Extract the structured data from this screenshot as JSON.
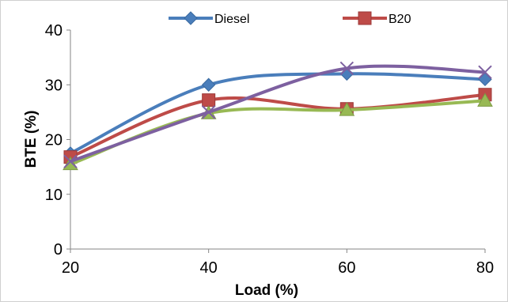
{
  "chart_data": {
    "type": "line",
    "xlabel": "Load (%)",
    "ylabel": "BTE (%)",
    "x": [
      20,
      40,
      60,
      80
    ],
    "xlim": [
      20,
      80
    ],
    "ylim": [
      0,
      40
    ],
    "yticks": [
      0,
      10,
      20,
      30,
      40
    ],
    "grid": false,
    "legend_placement": "top",
    "series": [
      {
        "name": "Diesel",
        "values": [
          17.5,
          30.0,
          32.0,
          31.0
        ],
        "color": "#4a7ebb",
        "marker": "diamond"
      },
      {
        "name": "B20",
        "values": [
          16.8,
          27.2,
          25.6,
          28.2
        ],
        "color": "#be4b48",
        "marker": "square"
      },
      {
        "name": "",
        "values": [
          15.5,
          24.8,
          25.4,
          27.1
        ],
        "color": "#98b954",
        "marker": "triangle"
      },
      {
        "name": "",
        "values": [
          16.0,
          25.0,
          33.0,
          32.3
        ],
        "color": "#7d60a0",
        "marker": "x"
      }
    ]
  }
}
